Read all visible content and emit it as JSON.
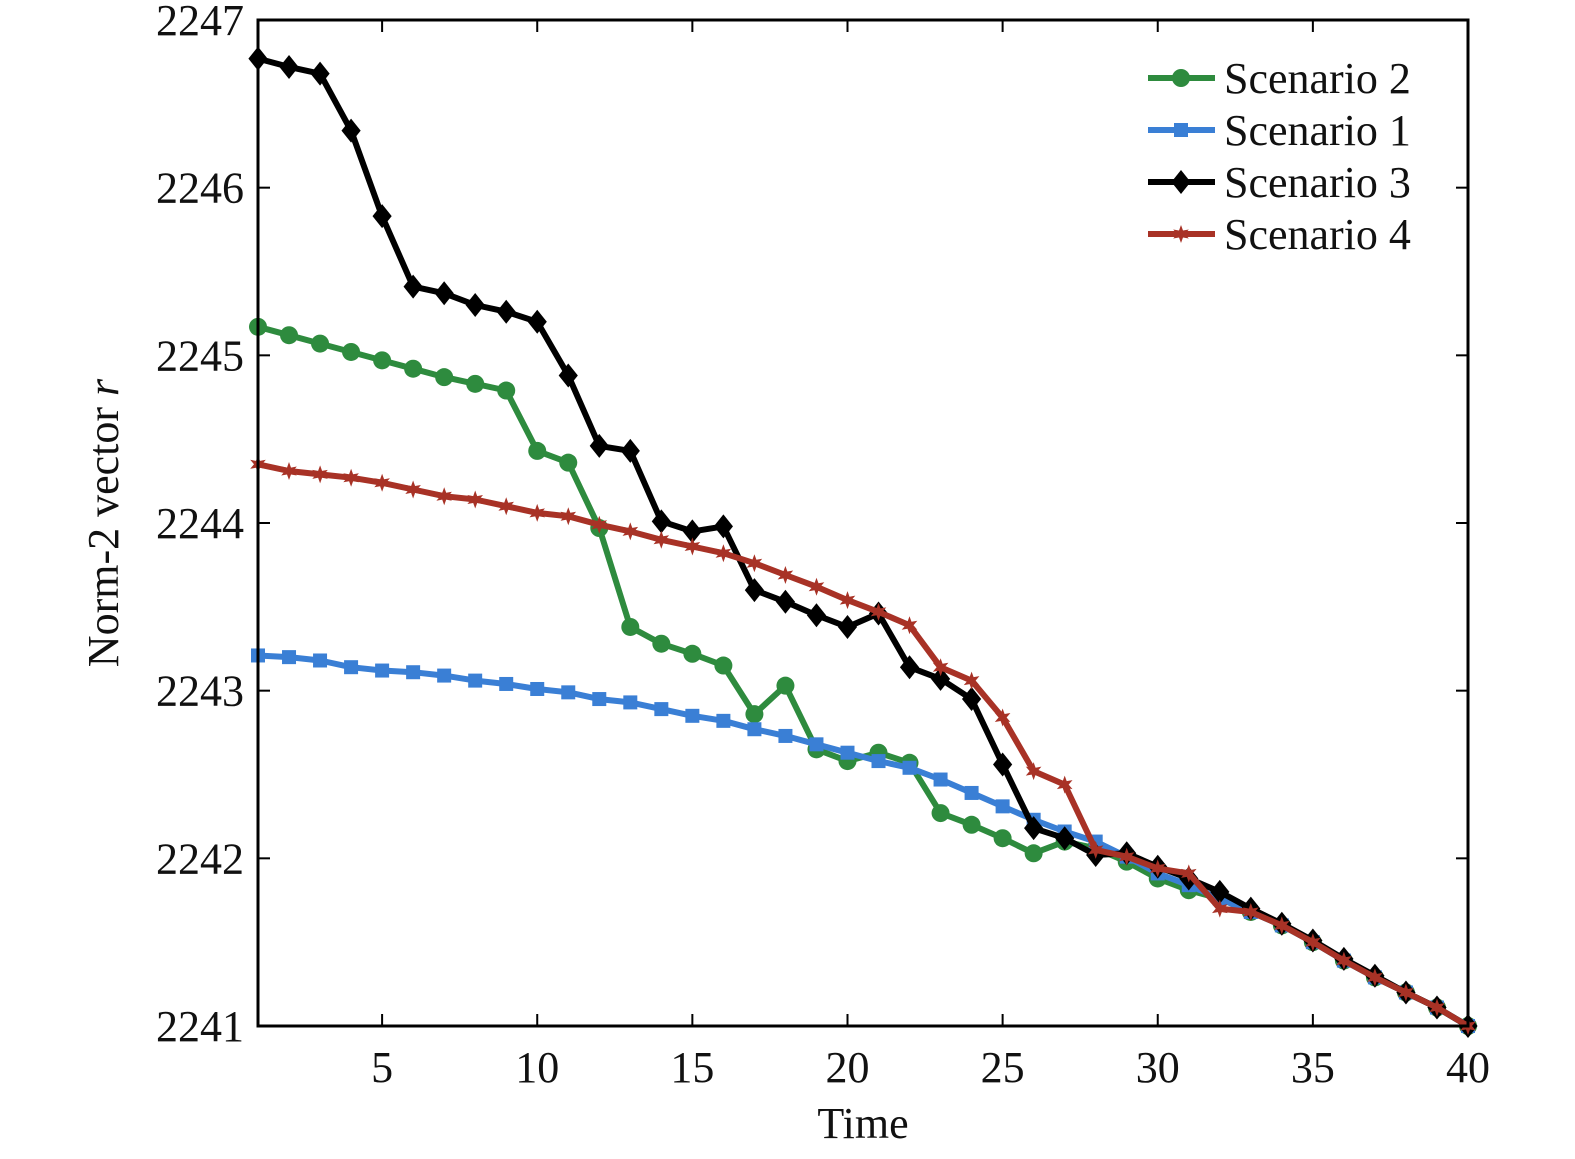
{
  "chart_data": {
    "type": "line",
    "title": "",
    "xlabel": "Time",
    "ylabel": "Norm-2 vector",
    "ylabel_italic": "r",
    "xlim": [
      1,
      40
    ],
    "ylim": [
      2241,
      2247
    ],
    "xticks": [
      5,
      10,
      15,
      20,
      25,
      30,
      35,
      40
    ],
    "yticks": [
      2241,
      2242,
      2243,
      2244,
      2245,
      2246,
      2247
    ],
    "grid": false,
    "legend_position": "top-right",
    "x": [
      1,
      2,
      3,
      4,
      5,
      6,
      7,
      8,
      9,
      10,
      11,
      12,
      13,
      14,
      15,
      16,
      17,
      18,
      19,
      20,
      21,
      22,
      23,
      24,
      25,
      26,
      27,
      28,
      29,
      30,
      31,
      32,
      33,
      34,
      35,
      36,
      37,
      38,
      39,
      40
    ],
    "series": [
      {
        "name": "Scenario 2",
        "color": "#2e8b3e",
        "marker": "circle",
        "values": [
          2245.17,
          2245.12,
          2245.07,
          2245.02,
          2244.97,
          2244.92,
          2244.87,
          2244.83,
          2244.79,
          2244.43,
          2244.36,
          2243.97,
          2243.38,
          2243.28,
          2243.22,
          2243.15,
          2242.86,
          2243.03,
          2242.65,
          2242.58,
          2242.63,
          2242.57,
          2242.27,
          2242.2,
          2242.12,
          2242.03,
          2242.1,
          2242.06,
          2241.98,
          2241.88,
          2241.81,
          2241.76,
          2241.68,
          2241.6,
          2241.5,
          2241.39,
          2241.29,
          2241.2,
          2241.11,
          2241.0
        ]
      },
      {
        "name": "Scenario 1",
        "color": "#3a7fd5",
        "marker": "square",
        "values": [
          2243.21,
          2243.2,
          2243.18,
          2243.14,
          2243.12,
          2243.11,
          2243.09,
          2243.06,
          2243.04,
          2243.01,
          2242.99,
          2242.95,
          2242.93,
          2242.89,
          2242.85,
          2242.82,
          2242.77,
          2242.73,
          2242.68,
          2242.63,
          2242.58,
          2242.54,
          2242.47,
          2242.39,
          2242.31,
          2242.23,
          2242.16,
          2242.1,
          2242.01,
          2241.91,
          2241.84,
          2241.76,
          2241.68,
          2241.6,
          2241.5,
          2241.39,
          2241.29,
          2241.2,
          2241.11,
          2241.0
        ]
      },
      {
        "name": "Scenario 3",
        "color": "#000000",
        "marker": "diamond",
        "values": [
          2246.77,
          2246.72,
          2246.68,
          2246.34,
          2245.83,
          2245.41,
          2245.37,
          2245.3,
          2245.26,
          2245.2,
          2244.88,
          2244.46,
          2244.43,
          2244.01,
          2243.95,
          2243.98,
          2243.6,
          2243.53,
          2243.45,
          2243.38,
          2243.46,
          2243.14,
          2243.07,
          2242.95,
          2242.56,
          2242.18,
          2242.12,
          2242.02,
          2242.03,
          2241.95,
          2241.88,
          2241.8,
          2241.7,
          2241.61,
          2241.51,
          2241.4,
          2241.3,
          2241.2,
          2241.11,
          2241.0
        ]
      },
      {
        "name": "Scenario 4",
        "color": "#a83226",
        "marker": "star",
        "values": [
          2244.35,
          2244.31,
          2244.29,
          2244.27,
          2244.24,
          2244.2,
          2244.16,
          2244.14,
          2244.1,
          2244.06,
          2244.04,
          2243.99,
          2243.95,
          2243.9,
          2243.86,
          2243.82,
          2243.76,
          2243.69,
          2243.62,
          2243.54,
          2243.47,
          2243.39,
          2243.14,
          2243.06,
          2242.84,
          2242.52,
          2242.44,
          2242.05,
          2242.01,
          2241.94,
          2241.91,
          2241.7,
          2241.68,
          2241.6,
          2241.5,
          2241.39,
          2241.29,
          2241.2,
          2241.11,
          2241.0
        ]
      }
    ]
  }
}
